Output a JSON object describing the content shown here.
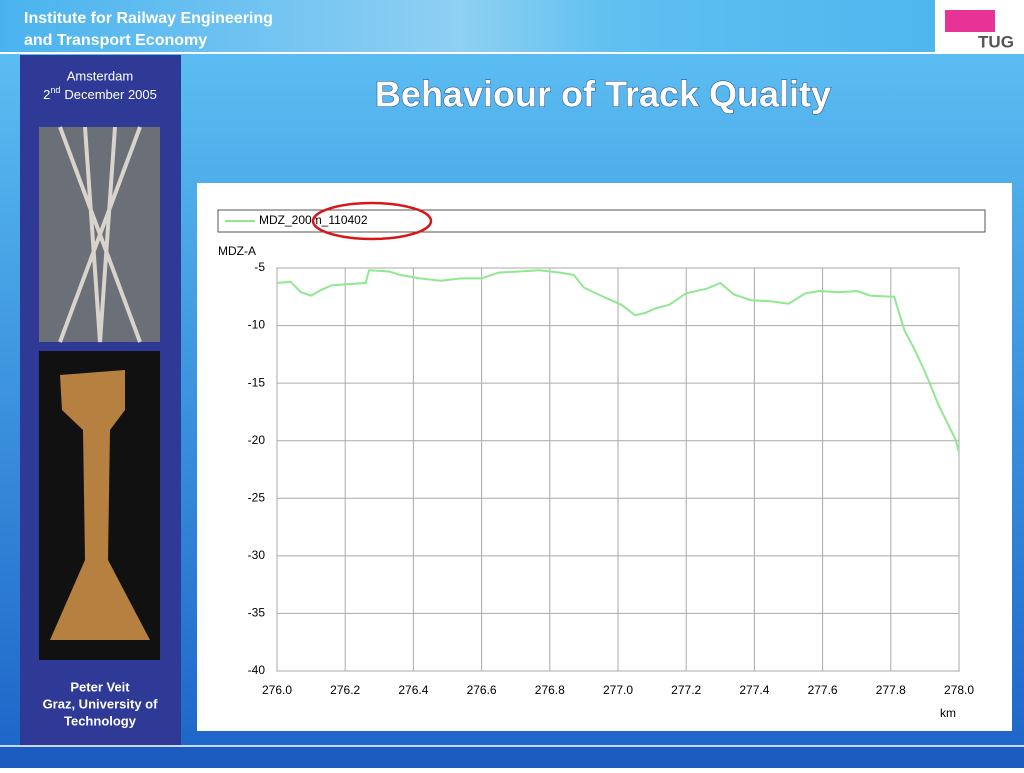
{
  "header": {
    "institute": [
      "Institute for Railway Engineering",
      "and Transport Economy"
    ],
    "logo": "TUG"
  },
  "sidebar": {
    "place": "Amsterdam",
    "date_day": "2",
    "date_suffix": "nd",
    "date_rest": "December 2005",
    "author": [
      "Peter Veit",
      "Graz, University of",
      "Technology"
    ]
  },
  "title": "Behaviour of Track Quality",
  "chart_data": {
    "type": "line",
    "y_label": "MDZ-A",
    "x_label": "km",
    "x": [
      276.0,
      276.04,
      276.07,
      276.1,
      276.13,
      276.16,
      276.21,
      276.26,
      276.27,
      276.33,
      276.36,
      276.42,
      276.48,
      276.54,
      276.6,
      276.65,
      276.77,
      276.83,
      276.87,
      276.9,
      276.95,
      277.01,
      277.05,
      277.08,
      277.11,
      277.15,
      277.2,
      277.26,
      277.3,
      277.34,
      277.39,
      277.45,
      277.5,
      277.55,
      277.59,
      277.65,
      277.7,
      277.74,
      277.81,
      277.84,
      277.87,
      277.9,
      277.94,
      277.99,
      278.0
    ],
    "series": [
      {
        "name": "MDZ_200m_110402",
        "color": "#90e890",
        "values": [
          -6.3,
          -6.2,
          -7.1,
          -7.4,
          -6.9,
          -6.5,
          -6.4,
          -6.3,
          -5.2,
          -5.3,
          -5.6,
          -5.9,
          -6.1,
          -5.9,
          -5.9,
          -5.4,
          -5.2,
          -5.4,
          -5.6,
          -6.7,
          -7.4,
          -8.2,
          -9.1,
          -8.9,
          -8.5,
          -8.2,
          -7.2,
          -6.8,
          -6.3,
          -7.3,
          -7.8,
          -7.9,
          -8.1,
          -7.2,
          -7.0,
          -7.1,
          -7.0,
          -7.4,
          -7.5,
          -10.4,
          -12.1,
          -14.0,
          -16.9,
          -19.9,
          -21.0
        ]
      }
    ],
    "xlim": [
      276.0,
      278.0
    ],
    "xticks": [
      {
        "value": 276,
        "label": "276.0"
      },
      276.2,
      276.4,
      276.6,
      276.8,
      {
        "value": 277,
        "label": "277.0"
      },
      277.2,
      277.4,
      277.6,
      277.8,
      {
        "value": 278,
        "label": "278.0"
      }
    ],
    "ylim": [
      -40,
      -5
    ],
    "yticks": [
      -5,
      -10,
      -15,
      -20,
      -25,
      -30,
      -35,
      -40
    ],
    "grid": true
  }
}
